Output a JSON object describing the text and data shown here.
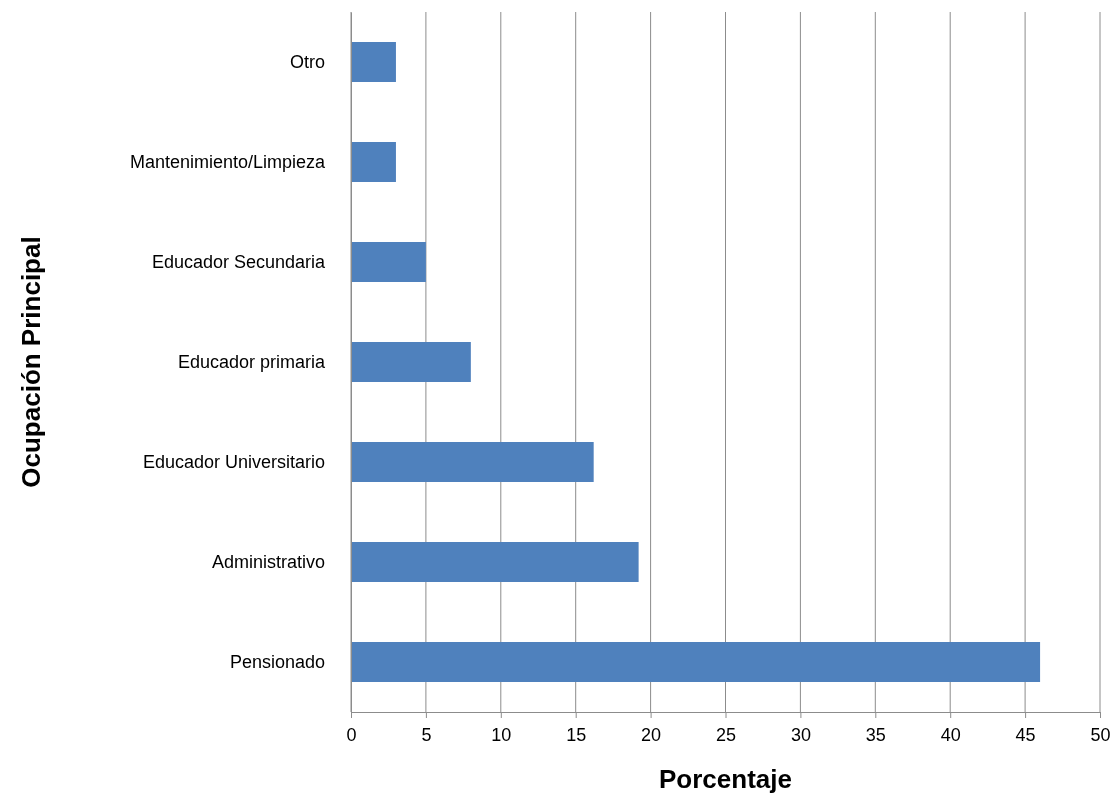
{
  "chart_data": {
    "type": "bar",
    "orientation": "horizontal",
    "categories": [
      "Otro",
      "Mantenimiento/Limpieza",
      "Educador Secundaria",
      "Educador primaria",
      "Educador Universitario",
      "Administrativo",
      "Pensionado"
    ],
    "values": [
      3,
      3,
      5,
      8,
      16.2,
      19.2,
      46
    ],
    "color": "#4f81bd",
    "xlabel": "Porcentaje",
    "ylabel": "Ocupación Principal",
    "xlim": [
      0,
      50
    ],
    "xticks": [
      0,
      5,
      10,
      15,
      20,
      25,
      30,
      35,
      40,
      45,
      50
    ],
    "grid": "x"
  }
}
